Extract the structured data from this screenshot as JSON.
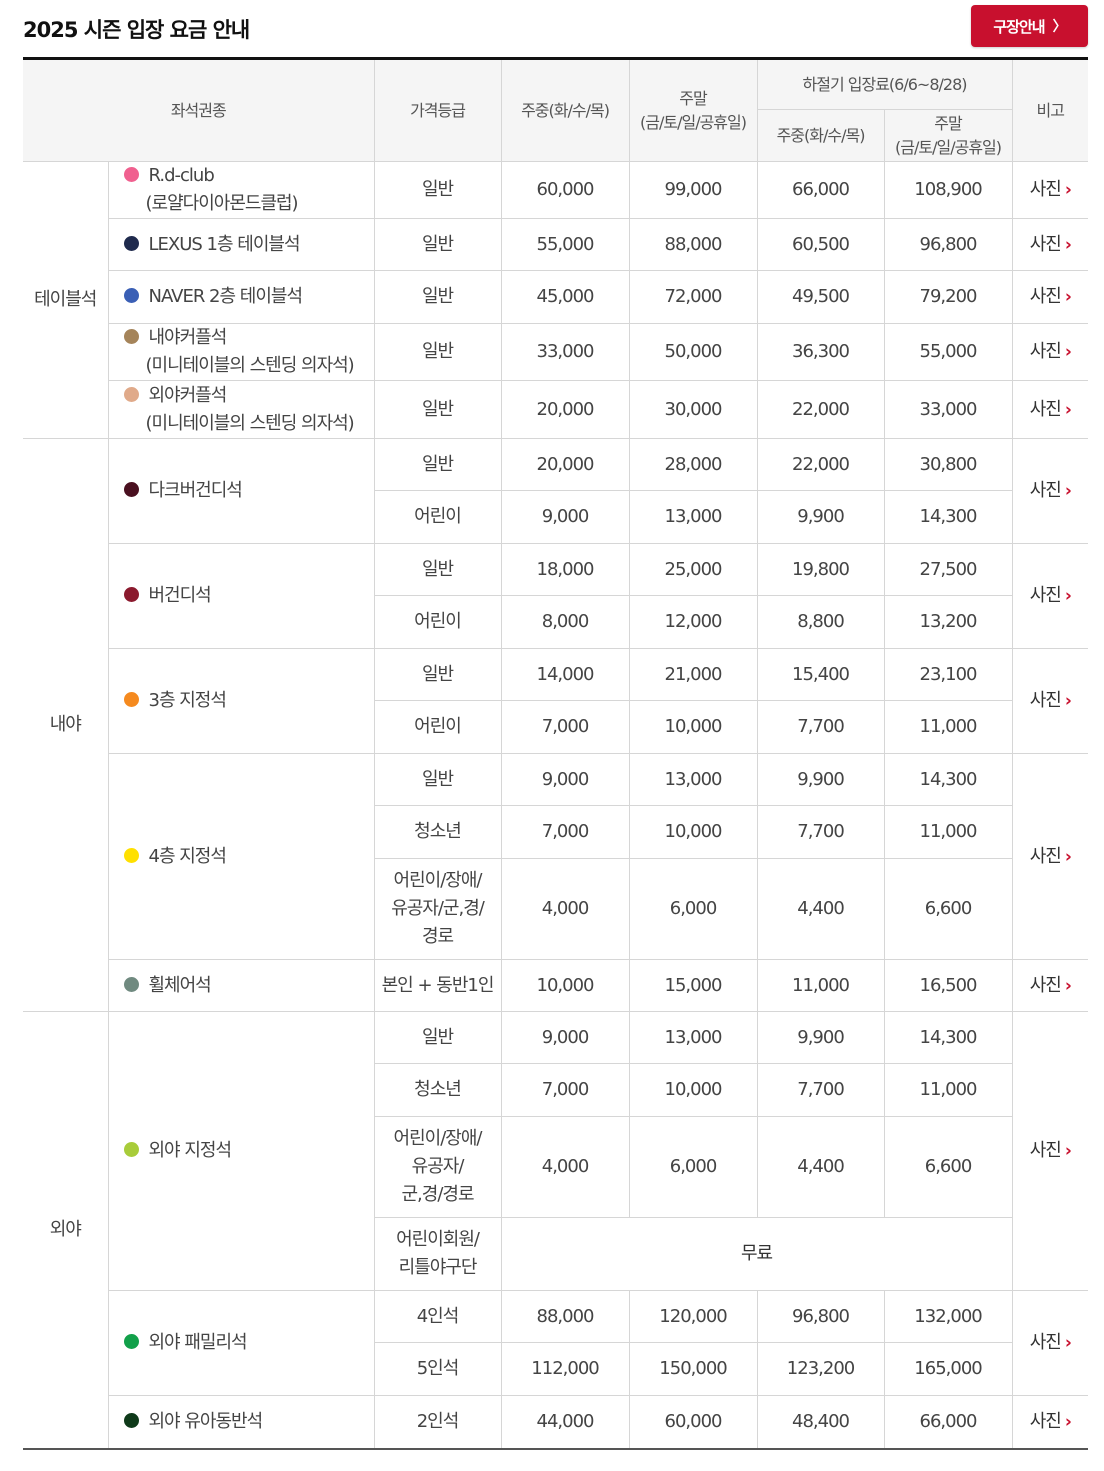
{
  "page": {
    "title": "2025 시즌 입장 요금 안내",
    "guide_button": "구장안내",
    "guide_arrow": "〉"
  },
  "header": {
    "seat_type": "좌석권종",
    "price_grade": "가격등급",
    "weekday": "주중(화/수/목)",
    "weekend_l1": "주말",
    "weekend_l2": "(금/토/일/공휴일)",
    "summer": "하절기 입장료(6/6~8/28)",
    "summer_weekday": "주중(화/수/목)",
    "summer_weekend_l1": "주말",
    "summer_weekend_l2": "(금/토/일/공휴일)",
    "note": "비고"
  },
  "photo_label": "사진",
  "colors": {
    "accent": "#c8102e"
  },
  "categories": {
    "table": "테이블석",
    "infield": "내야",
    "outfield": "외야"
  },
  "seats": [
    {
      "l1": "R.d-club",
      "l2": "(로얄다이아몬드클럽)",
      "color": "#f0608f",
      "rows": [
        {
          "grade": "일반",
          "p": [
            "60,000",
            "99,000",
            "66,000",
            "108,900"
          ]
        }
      ]
    },
    {
      "l1": "LEXUS 1층 테이블석",
      "color": "#1f2a4d",
      "rows": [
        {
          "grade": "일반",
          "p": [
            "55,000",
            "88,000",
            "60,500",
            "96,800"
          ]
        }
      ]
    },
    {
      "l1": "NAVER 2층 테이블석",
      "color": "#3a5fb5",
      "rows": [
        {
          "grade": "일반",
          "p": [
            "45,000",
            "72,000",
            "49,500",
            "79,200"
          ]
        }
      ]
    },
    {
      "l1": "내야커플석",
      "l2": "(미니테이블의 스텐딩 의자석)",
      "color": "#a5845a",
      "rows": [
        {
          "grade": "일반",
          "p": [
            "33,000",
            "50,000",
            "36,300",
            "55,000"
          ]
        }
      ]
    },
    {
      "l1": "외야커플석",
      "l2": "(미니테이블의 스텐딩 의자석)",
      "color": "#e0aa8a",
      "rows": [
        {
          "grade": "일반",
          "p": [
            "20,000",
            "30,000",
            "22,000",
            "33,000"
          ]
        }
      ]
    },
    {
      "l1": "다크버건디석",
      "color": "#4a1020",
      "rows": [
        {
          "grade": "일반",
          "p": [
            "20,000",
            "28,000",
            "22,000",
            "30,800"
          ]
        },
        {
          "grade": "어린이",
          "p": [
            "9,000",
            "13,000",
            "9,900",
            "14,300"
          ]
        }
      ]
    },
    {
      "l1": "버건디석",
      "color": "#8b1a2e",
      "rows": [
        {
          "grade": "일반",
          "p": [
            "18,000",
            "25,000",
            "19,800",
            "27,500"
          ]
        },
        {
          "grade": "어린이",
          "p": [
            "8,000",
            "12,000",
            "8,800",
            "13,200"
          ]
        }
      ]
    },
    {
      "l1": "3층 지정석",
      "color": "#f58a1f",
      "rows": [
        {
          "grade": "일반",
          "p": [
            "14,000",
            "21,000",
            "15,400",
            "23,100"
          ]
        },
        {
          "grade": "어린이",
          "p": [
            "7,000",
            "10,000",
            "7,700",
            "11,000"
          ]
        }
      ]
    },
    {
      "l1": "4층 지정석",
      "color": "#ffe000",
      "rows": [
        {
          "grade": "일반",
          "p": [
            "9,000",
            "13,000",
            "9,900",
            "14,300"
          ]
        },
        {
          "grade": "청소년",
          "p": [
            "7,000",
            "10,000",
            "7,700",
            "11,000"
          ]
        },
        {
          "grade_l1": "어린이/장애/",
          "grade_l2": "유공자/군,경/",
          "grade_l3": "경로",
          "p": [
            "4,000",
            "6,000",
            "4,400",
            "6,600"
          ]
        }
      ]
    },
    {
      "l1": "휠체어석",
      "color": "#708a80",
      "rows": [
        {
          "grade": "본인 + 동반1인",
          "p": [
            "10,000",
            "15,000",
            "11,000",
            "16,500"
          ]
        }
      ]
    },
    {
      "l1": "외야 지정석",
      "color": "#a8cc3a",
      "rows": [
        {
          "grade": "일반",
          "p": [
            "9,000",
            "13,000",
            "9,900",
            "14,300"
          ]
        },
        {
          "grade": "청소년",
          "p": [
            "7,000",
            "10,000",
            "7,700",
            "11,000"
          ]
        },
        {
          "grade_l1": "어린이/장애/",
          "grade_l2": "유공자/",
          "grade_l3": "군,경/경로",
          "p": [
            "4,000",
            "6,000",
            "4,400",
            "6,600"
          ]
        },
        {
          "grade_l1": "어린이회원/",
          "grade_l2": "리틀야구단",
          "free": "무료"
        }
      ]
    },
    {
      "l1": "외야 패밀리석",
      "color": "#12a04a",
      "rows": [
        {
          "grade": "4인석",
          "p": [
            "88,000",
            "120,000",
            "96,800",
            "132,000"
          ]
        },
        {
          "grade": "5인석",
          "p": [
            "112,000",
            "150,000",
            "123,200",
            "165,000"
          ]
        }
      ]
    },
    {
      "l1": "외야 유아동반석",
      "color": "#0f3a1a",
      "rows": [
        {
          "grade": "2인석",
          "p": [
            "44,000",
            "60,000",
            "48,400",
            "66,000"
          ]
        }
      ]
    }
  ]
}
